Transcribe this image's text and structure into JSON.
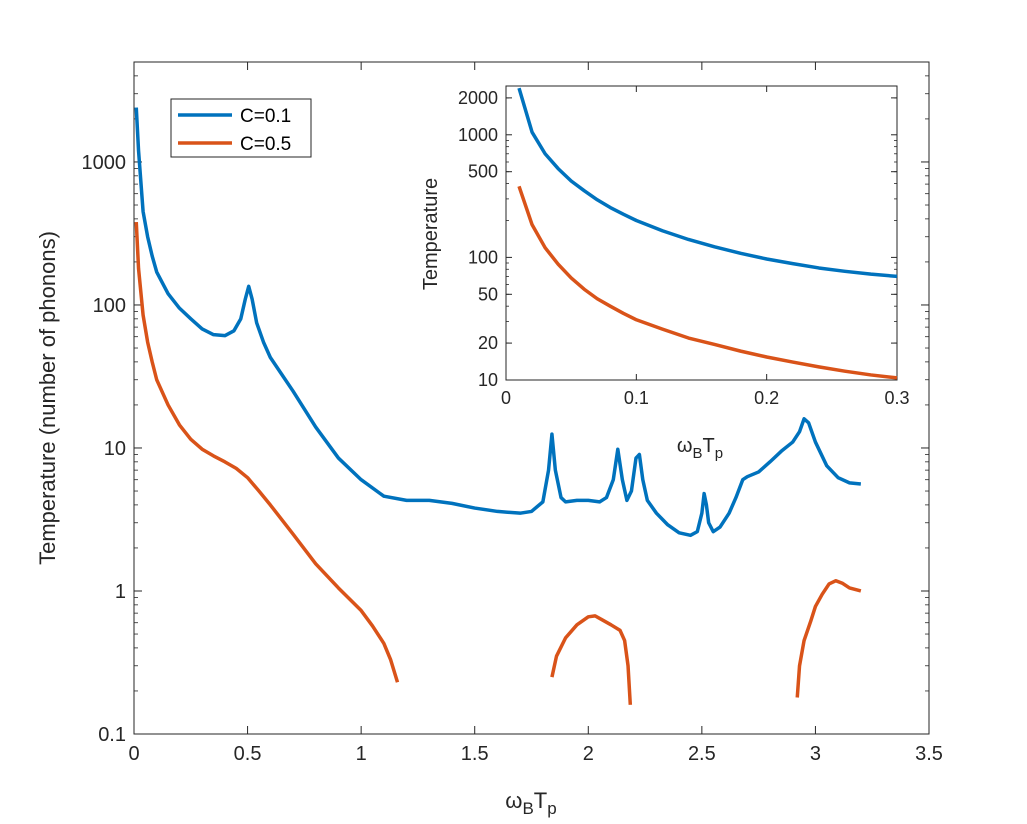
{
  "chart_data": [
    {
      "type": "line",
      "title": "",
      "xlabel": {
        "main": "ω",
        "sub1": "B",
        "mid": "T",
        "sub2": "p"
      },
      "ylabel": "Temperature (number of phonons)",
      "xlim": [
        0,
        3.5
      ],
      "ylim": [
        0.1,
        5000
      ],
      "yscale": "log",
      "xticks": [
        0,
        0.5,
        1,
        1.5,
        2,
        2.5,
        3,
        3.5
      ],
      "xtick_labels": [
        "0",
        "0.5",
        "1",
        "1.5",
        "2",
        "2.5",
        "3",
        "3.5"
      ],
      "yticks": [
        0.1,
        1,
        10,
        100,
        1000
      ],
      "ytick_labels": [
        "0.1",
        "1",
        "10",
        "100",
        "1000"
      ],
      "legend": {
        "position": "top-left",
        "entries": [
          "C=0.1",
          "C=0.5"
        ]
      },
      "series": [
        {
          "name": "C=0.1",
          "color": "#0072BD",
          "segments": [
            [
              [
                0.01,
                2400
              ],
              [
                0.02,
                1200
              ],
              [
                0.04,
                450
              ],
              [
                0.06,
                300
              ],
              [
                0.08,
                220
              ],
              [
                0.1,
                170
              ],
              [
                0.15,
                120
              ],
              [
                0.2,
                95
              ],
              [
                0.25,
                80
              ],
              [
                0.3,
                68
              ],
              [
                0.35,
                62
              ],
              [
                0.4,
                61
              ],
              [
                0.44,
                66
              ],
              [
                0.47,
                80
              ],
              [
                0.49,
                110
              ],
              [
                0.505,
                135
              ],
              [
                0.52,
                110
              ],
              [
                0.54,
                75
              ],
              [
                0.57,
                55
              ],
              [
                0.6,
                43
              ],
              [
                0.7,
                25
              ],
              [
                0.8,
                14
              ],
              [
                0.9,
                8.5
              ],
              [
                1.0,
                6.0
              ],
              [
                1.1,
                4.6
              ],
              [
                1.2,
                4.3
              ],
              [
                1.3,
                4.3
              ],
              [
                1.4,
                4.1
              ],
              [
                1.5,
                3.8
              ],
              [
                1.6,
                3.6
              ],
              [
                1.7,
                3.5
              ],
              [
                1.75,
                3.6
              ],
              [
                1.8,
                4.2
              ],
              [
                1.825,
                7
              ],
              [
                1.84,
                12.5
              ],
              [
                1.855,
                7
              ],
              [
                1.88,
                4.5
              ],
              [
                1.9,
                4.2
              ],
              [
                1.95,
                4.3
              ],
              [
                2.0,
                4.3
              ],
              [
                2.05,
                4.2
              ],
              [
                2.08,
                4.5
              ],
              [
                2.11,
                6
              ],
              [
                2.13,
                9.8
              ],
              [
                2.15,
                6
              ],
              [
                2.17,
                4.3
              ],
              [
                2.19,
                5
              ],
              [
                2.21,
                8.5
              ],
              [
                2.225,
                9
              ],
              [
                2.24,
                6
              ],
              [
                2.26,
                4.3
              ],
              [
                2.3,
                3.5
              ],
              [
                2.35,
                2.9
              ],
              [
                2.4,
                2.55
              ],
              [
                2.45,
                2.45
              ],
              [
                2.48,
                2.6
              ],
              [
                2.5,
                3.5
              ],
              [
                2.51,
                4.8
              ],
              [
                2.52,
                4
              ],
              [
                2.53,
                3
              ],
              [
                2.55,
                2.6
              ],
              [
                2.58,
                2.8
              ],
              [
                2.62,
                3.5
              ],
              [
                2.65,
                4.5
              ],
              [
                2.68,
                6
              ],
              [
                2.7,
                6.3
              ],
              [
                2.75,
                6.8
              ],
              [
                2.8,
                8
              ],
              [
                2.85,
                9.5
              ],
              [
                2.9,
                11
              ],
              [
                2.93,
                13
              ],
              [
                2.95,
                16
              ],
              [
                2.97,
                15
              ],
              [
                3.0,
                11
              ],
              [
                3.05,
                7.5
              ],
              [
                3.1,
                6.2
              ],
              [
                3.15,
                5.7
              ],
              [
                3.2,
                5.6
              ]
            ]
          ]
        },
        {
          "name": "C=0.5",
          "color": "#D95319",
          "segments": [
            [
              [
                0.01,
                380
              ],
              [
                0.02,
                180
              ],
              [
                0.04,
                85
              ],
              [
                0.06,
                55
              ],
              [
                0.08,
                40
              ],
              [
                0.1,
                30
              ],
              [
                0.15,
                20
              ],
              [
                0.2,
                14.5
              ],
              [
                0.25,
                11.5
              ],
              [
                0.3,
                9.8
              ],
              [
                0.35,
                8.8
              ],
              [
                0.4,
                8
              ],
              [
                0.45,
                7.2
              ],
              [
                0.5,
                6.2
              ],
              [
                0.55,
                5
              ],
              [
                0.6,
                4
              ],
              [
                0.7,
                2.5
              ],
              [
                0.8,
                1.55
              ],
              [
                0.9,
                1.05
              ],
              [
                1.0,
                0.73
              ],
              [
                1.05,
                0.57
              ],
              [
                1.1,
                0.43
              ],
              [
                1.13,
                0.33
              ],
              [
                1.16,
                0.23
              ]
            ],
            [
              [
                1.84,
                0.25
              ],
              [
                1.86,
                0.35
              ],
              [
                1.9,
                0.47
              ],
              [
                1.95,
                0.58
              ],
              [
                2.0,
                0.66
              ],
              [
                2.03,
                0.67
              ],
              [
                2.06,
                0.63
              ],
              [
                2.1,
                0.58
              ],
              [
                2.14,
                0.53
              ],
              [
                2.16,
                0.45
              ],
              [
                2.175,
                0.3
              ],
              [
                2.185,
                0.16
              ]
            ],
            [
              [
                2.92,
                0.18
              ],
              [
                2.93,
                0.3
              ],
              [
                2.95,
                0.45
              ],
              [
                2.98,
                0.62
              ],
              [
                3.0,
                0.78
              ],
              [
                3.03,
                0.95
              ],
              [
                3.06,
                1.12
              ],
              [
                3.09,
                1.18
              ],
              [
                3.12,
                1.13
              ],
              [
                3.15,
                1.05
              ],
              [
                3.2,
                1.0
              ]
            ]
          ]
        }
      ]
    },
    {
      "type": "line",
      "title": "",
      "xlabel": {
        "main": "ω",
        "sub1": "B",
        "mid": "T",
        "sub2": "p"
      },
      "ylabel": "Temperature",
      "xlim": [
        0,
        0.3
      ],
      "ylim": [
        10,
        2500
      ],
      "yscale": "log",
      "xticks": [
        0,
        0.1,
        0.2,
        0.3
      ],
      "xtick_labels": [
        "0",
        "0.1",
        "0.2",
        "0.3"
      ],
      "yticks": [
        10,
        20,
        50,
        100,
        500,
        1000,
        2000
      ],
      "ytick_labels": [
        "10",
        "20",
        "50",
        "100",
        "500",
        "1000",
        "2000"
      ],
      "series": [
        {
          "name": "C=0.1",
          "color": "#0072BD",
          "segments": [
            [
              [
                0.01,
                2400
              ],
              [
                0.02,
                1050
              ],
              [
                0.03,
                700
              ],
              [
                0.04,
                530
              ],
              [
                0.05,
                420
              ],
              [
                0.06,
                350
              ],
              [
                0.07,
                295
              ],
              [
                0.08,
                255
              ],
              [
                0.09,
                225
              ],
              [
                0.1,
                200
              ],
              [
                0.12,
                165
              ],
              [
                0.14,
                140
              ],
              [
                0.16,
                122
              ],
              [
                0.18,
                108
              ],
              [
                0.2,
                97
              ],
              [
                0.22,
                89
              ],
              [
                0.24,
                82
              ],
              [
                0.26,
                77
              ],
              [
                0.28,
                73
              ],
              [
                0.3,
                70
              ]
            ]
          ]
        },
        {
          "name": "C=0.5",
          "color": "#D95319",
          "segments": [
            [
              [
                0.01,
                380
              ],
              [
                0.02,
                185
              ],
              [
                0.03,
                120
              ],
              [
                0.04,
                88
              ],
              [
                0.05,
                68
              ],
              [
                0.06,
                55
              ],
              [
                0.07,
                46
              ],
              [
                0.08,
                40
              ],
              [
                0.09,
                35
              ],
              [
                0.1,
                31
              ],
              [
                0.12,
                26
              ],
              [
                0.14,
                22
              ],
              [
                0.16,
                19.5
              ],
              [
                0.18,
                17.2
              ],
              [
                0.2,
                15.4
              ],
              [
                0.22,
                14
              ],
              [
                0.24,
                12.8
              ],
              [
                0.26,
                11.8
              ],
              [
                0.28,
                11
              ],
              [
                0.3,
                10.4
              ]
            ]
          ]
        }
      ]
    }
  ]
}
